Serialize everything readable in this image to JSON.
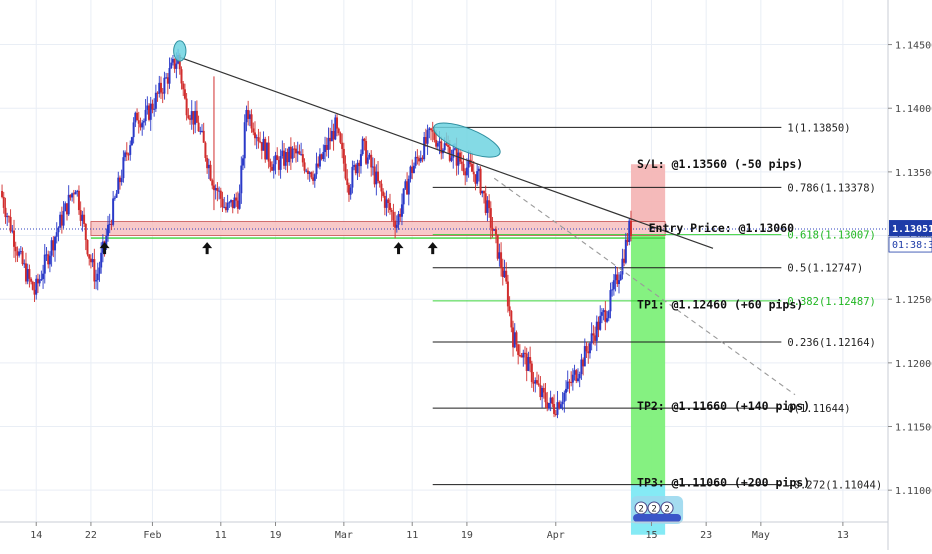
{
  "chart_data": {
    "type": "candlestick",
    "colors": {
      "up": "#2a39c8",
      "down": "#d12d2d",
      "grid": "#e9eef5",
      "trendline": "#333333",
      "fib_black": "#1c1c1c",
      "fib_green": "#3bd33b",
      "sl_zone": "#f4b6b6",
      "tp_zone": "#7ef07a",
      "tp_zone_lower": "#7ee9f4",
      "entry_zone": "#f6bcbc",
      "ellipse": "#6fd3e0",
      "price_badge": "#1e3ca8"
    },
    "x_axis": {
      "ticks": [
        {
          "label": "14",
          "day": -21
        },
        {
          "label": "22",
          "day": -13
        },
        {
          "label": "Feb",
          "day": -4
        },
        {
          "label": "11",
          "day": 6
        },
        {
          "label": "19",
          "day": 14
        },
        {
          "label": "Mar",
          "day": 24
        },
        {
          "label": "11",
          "day": 34
        },
        {
          "label": "19",
          "day": 42
        },
        {
          "label": "Apr",
          "day": 55
        },
        {
          "label": "15",
          "day": 69
        },
        {
          "label": "23",
          "day": 77
        },
        {
          "label": "May",
          "day": 85
        },
        {
          "label": "13",
          "day": 97
        }
      ]
    },
    "y_axis": {
      "ylim": [
        1.1075,
        1.1485
      ],
      "ticks": [
        "1.14500",
        "1.14000",
        "1.13500",
        "1.13000",
        "1.12500",
        "1.12000",
        "1.11500",
        "1.11000"
      ],
      "tick_values": [
        1.145,
        1.14,
        1.135,
        1.13,
        1.125,
        1.12,
        1.115,
        1.11
      ]
    },
    "current_price": {
      "value": 1.13051,
      "label": "1.13051",
      "countdown": "01:38:34"
    },
    "ohlc_path": [
      [
        -26,
        1.1335
      ],
      [
        -23,
        1.128
      ],
      [
        -21,
        1.1255
      ],
      [
        -18,
        1.13
      ],
      [
        -15,
        1.134
      ],
      [
        -13,
        1.1285
      ],
      [
        -12,
        1.1265
      ],
      [
        -10,
        1.131
      ],
      [
        -8,
        1.1355
      ],
      [
        -6,
        1.1395
      ],
      [
        -5,
        1.139
      ],
      [
        -3,
        1.141
      ],
      [
        -1,
        1.143
      ],
      [
        0,
        1.144
      ],
      [
        1,
        1.1405
      ],
      [
        3,
        1.1385
      ],
      [
        5,
        1.1345
      ],
      [
        7,
        1.132
      ],
      [
        9,
        1.133
      ],
      [
        10,
        1.14
      ],
      [
        12,
        1.1375
      ],
      [
        14,
        1.1355
      ],
      [
        17,
        1.1365
      ],
      [
        20,
        1.1348
      ],
      [
        23,
        1.1385
      ],
      [
        25,
        1.134
      ],
      [
        27,
        1.137
      ],
      [
        30,
        1.133
      ],
      [
        32,
        1.131
      ],
      [
        34,
        1.135
      ],
      [
        37,
        1.138
      ],
      [
        39,
        1.137
      ],
      [
        41,
        1.136
      ],
      [
        44,
        1.1345
      ],
      [
        46,
        1.1305
      ],
      [
        48,
        1.126
      ],
      [
        49,
        1.122
      ],
      [
        51,
        1.12
      ],
      [
        53,
        1.1175
      ],
      [
        55,
        1.1165
      ],
      [
        57,
        1.118
      ],
      [
        59,
        1.12
      ],
      [
        61,
        1.1225
      ],
      [
        63,
        1.1245
      ],
      [
        65,
        1.128
      ],
      [
        66,
        1.1305
      ]
    ],
    "trendline": {
      "from": [
        0,
        1.144
      ],
      "to": [
        78,
        1.129
      ]
    },
    "trendline_dashed": {
      "from": [
        46,
        1.1345
      ],
      "to": [
        90,
        1.1175
      ]
    },
    "entry_zone": {
      "from_day": -13,
      "to_day": 71,
      "top": 1.1311,
      "bottom": 1.13
    },
    "support_line": 1.1298,
    "arrows_days": [
      -11,
      4,
      32,
      37
    ],
    "highlight_ellipses": [
      {
        "day": 0,
        "price": 1.1445,
        "rx_days": 0.9,
        "ry_price": 0.0008
      },
      {
        "day": 42,
        "price": 1.1375,
        "rx_days": 5.2,
        "ry_price": 0.0009,
        "angle": 22
      }
    ],
    "sl_box": {
      "from_day": 66,
      "to_day": 71,
      "top": 1.1356,
      "bottom": 1.1311
    },
    "tp_box": {
      "from_day": 66,
      "to_day": 71,
      "top": 1.13,
      "bottom": 1.1104
    },
    "tp_box_lower": {
      "from_day": 66,
      "to_day": 71,
      "top": 1.1104,
      "bottom": 1.1065
    },
    "fib_levels": [
      {
        "value": 1.1385,
        "label": "1(1.13850)",
        "color": "black"
      },
      {
        "value": 1.13378,
        "label": "0.786(1.13378)",
        "color": "black"
      },
      {
        "value": 1.13007,
        "label": "0.618(1.13007)",
        "color": "green"
      },
      {
        "value": 1.12747,
        "label": "0.5(1.12747)",
        "color": "black"
      },
      {
        "value": 1.12487,
        "label": "0.382(1.12487)",
        "color": "green"
      },
      {
        "value": 1.12164,
        "label": "0.236(1.12164)",
        "color": "black"
      },
      {
        "value": 1.11644,
        "label": "0(1.11644)",
        "color": "black"
      },
      {
        "value": 1.11044,
        "label": "-0.272(1.11044)",
        "color": "black"
      }
    ],
    "fib_from_day": 37,
    "fib_to_day": 88,
    "annotations": [
      {
        "day": 66.3,
        "value": 1.1356,
        "text": "S/L: @1.13560 (-50 pips)"
      },
      {
        "day": 68,
        "value": 1.1306,
        "text": "Entry Price: @1.13060"
      },
      {
        "day": 66.3,
        "value": 1.1246,
        "text": "TP1: @1.12460 (+60 pips)"
      },
      {
        "day": 66.3,
        "value": 1.1166,
        "text": "TP2: @1.11660 (+140 pips)"
      },
      {
        "day": 66.3,
        "value": 1.1106,
        "text": "TP3: @1.11060 (+200 pips)"
      }
    ],
    "event_badges": [
      "2",
      "2",
      "2"
    ]
  }
}
